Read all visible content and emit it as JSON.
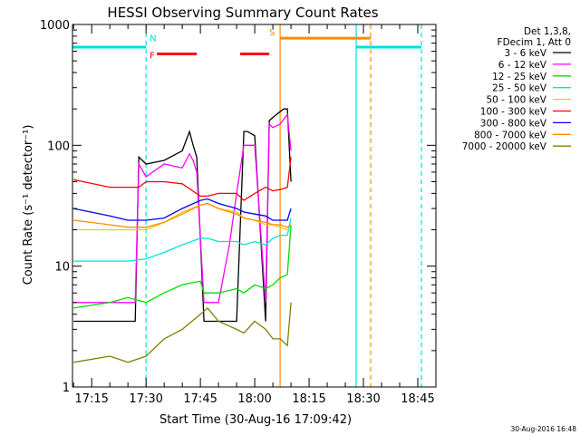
{
  "chart_data": {
    "type": "line",
    "title": "HESSI Observing Summary Count Rates",
    "xlabel": "Start Time (30-Aug-16 17:09:42)",
    "ylabel": "Count Rate (s⁻¹ detector⁻¹)",
    "y_scale": "log",
    "ylim": [
      1,
      1000
    ],
    "xlim": [
      "17:09:42",
      "18:50:00"
    ],
    "grid": false,
    "legend_position": "right",
    "y_ticks": [
      "1",
      "10",
      "100",
      "1000"
    ],
    "x_ticks": [
      "17:15",
      "17:30",
      "17:45",
      "18:00",
      "18:15",
      "18:30",
      "18:45"
    ],
    "legend_header": [
      "Det 1,3,8,",
      "FDecim 1, Att 0"
    ],
    "series": [
      {
        "name": "3 - 6 keV",
        "color": "#000000",
        "x": [
          "17:10",
          "17:20",
          "17:25",
          "17:27",
          "17:28",
          "17:30",
          "17:35",
          "17:40",
          "17:42",
          "17:43",
          "17:44",
          "17:46",
          "17:47",
          "17:50",
          "17:55",
          "17:57",
          "17:58",
          "18:00",
          "18:03",
          "18:04",
          "18:05",
          "18:07",
          "18:08",
          "18:09",
          "18:10"
        ],
        "y": [
          3.5,
          3.5,
          3.5,
          3.5,
          80,
          70,
          75,
          90,
          130,
          100,
          80,
          3.5,
          3.5,
          3.5,
          3.5,
          130,
          130,
          120,
          3.5,
          160,
          170,
          190,
          200,
          200,
          50
        ]
      },
      {
        "name": "6 - 12 keV",
        "color": "#ff00ff",
        "x": [
          "17:10",
          "17:20",
          "17:27",
          "17:28",
          "17:30",
          "17:35",
          "17:40",
          "17:42",
          "17:43",
          "17:44",
          "17:46",
          "17:47",
          "17:50",
          "17:53",
          "17:55",
          "17:57",
          "18:00",
          "18:03",
          "18:04",
          "18:05",
          "18:07",
          "18:09",
          "18:10"
        ],
        "y": [
          5,
          5,
          5,
          70,
          55,
          70,
          65,
          85,
          75,
          60,
          5,
          5,
          5,
          15,
          40,
          100,
          100,
          5,
          150,
          140,
          150,
          180,
          90
        ]
      },
      {
        "name": "12 - 25 keV",
        "color": "#00dd00",
        "x": [
          "17:10",
          "17:20",
          "17:25",
          "17:30",
          "17:35",
          "17:40",
          "17:45",
          "17:46",
          "17:50",
          "17:55",
          "17:57",
          "18:00",
          "18:03",
          "18:05",
          "18:07",
          "18:09",
          "18:10"
        ],
        "y": [
          4.5,
          5,
          5.5,
          5,
          6,
          7,
          7.5,
          6,
          6,
          6.5,
          6,
          7,
          6.5,
          7,
          8,
          8.5,
          22
        ]
      },
      {
        "name": "25 - 50 keV",
        "color": "#00e0e0",
        "x": [
          "17:10",
          "17:20",
          "17:25",
          "17:30",
          "17:35",
          "17:40",
          "17:45",
          "17:47",
          "17:50",
          "17:55",
          "17:57",
          "18:00",
          "18:03",
          "18:05",
          "18:07",
          "18:09",
          "18:10"
        ],
        "y": [
          11,
          11,
          11,
          11.5,
          13,
          15,
          17,
          17,
          16,
          16,
          15,
          16,
          15,
          17,
          18,
          18,
          25
        ]
      },
      {
        "name": "50 - 100 keV",
        "color": "#ffc800",
        "x": [
          "17:10",
          "17:20",
          "17:25",
          "17:30",
          "17:35",
          "17:40",
          "17:45",
          "17:47",
          "17:50",
          "17:55",
          "17:57",
          "18:00",
          "18:03",
          "18:05",
          "18:07",
          "18:09",
          "18:10"
        ],
        "y": [
          20,
          20,
          20,
          20,
          23,
          28,
          32,
          33,
          30,
          28,
          25,
          24,
          22,
          22,
          21,
          20,
          20
        ]
      },
      {
        "name": "100 - 300 keV",
        "color": "#ff0000",
        "x": [
          "17:10",
          "17:20",
          "17:25",
          "17:28",
          "17:30",
          "17:35",
          "17:40",
          "17:45",
          "17:47",
          "17:50",
          "17:55",
          "17:57",
          "18:00",
          "18:03",
          "18:05",
          "18:07",
          "18:09",
          "18:10"
        ],
        "y": [
          52,
          45,
          45,
          45,
          50,
          50,
          48,
          38,
          38,
          40,
          40,
          35,
          40,
          45,
          42,
          43,
          45,
          80
        ]
      },
      {
        "name": "300 - 800 keV",
        "color": "#0000ff",
        "x": [
          "17:10",
          "17:20",
          "17:25",
          "17:30",
          "17:35",
          "17:40",
          "17:45",
          "17:47",
          "17:50",
          "17:55",
          "17:57",
          "18:00",
          "18:03",
          "18:05",
          "18:07",
          "18:09",
          "18:10"
        ],
        "y": [
          30,
          26,
          24,
          24,
          25,
          30,
          35,
          36,
          33,
          30,
          28,
          27,
          26,
          24,
          24,
          24,
          30
        ]
      },
      {
        "name": "800 - 7000 keV",
        "color": "#ff8c00",
        "x": [
          "17:10",
          "17:20",
          "17:25",
          "17:30",
          "17:35",
          "17:40",
          "17:45",
          "17:47",
          "17:50",
          "17:55",
          "17:57",
          "18:00",
          "18:03",
          "18:05",
          "18:07",
          "18:09",
          "18:10"
        ],
        "y": [
          24,
          22,
          21,
          21,
          23,
          27,
          32,
          33,
          30,
          27,
          25,
          24,
          23,
          22,
          22,
          21,
          22
        ]
      },
      {
        "name": "7000 - 20000 keV",
        "color": "#808000",
        "x": [
          "17:10",
          "17:20",
          "17:25",
          "17:30",
          "17:35",
          "17:40",
          "17:45",
          "17:47",
          "17:50",
          "17:55",
          "17:57",
          "18:00",
          "18:03",
          "18:05",
          "18:07",
          "18:09",
          "18:10"
        ],
        "y": [
          1.6,
          1.8,
          1.6,
          1.8,
          2.5,
          3,
          4,
          4.5,
          3.5,
          3,
          2.8,
          3.5,
          3,
          2.5,
          2.5,
          2.2,
          5
        ]
      }
    ],
    "flag_markers": [
      {
        "label": "N",
        "color": "#00e0e0"
      },
      {
        "label": "F",
        "color": "#ff0000"
      },
      {
        "label": "S",
        "color": "#ff8c00"
      }
    ],
    "flag_bars": [
      {
        "flag": "N",
        "color": "#00e0e0",
        "x_start": "17:09:42",
        "x_end": "17:30:00",
        "y": 650
      },
      {
        "flag": "F",
        "color": "#ff0000",
        "x_start": "17:33:00",
        "x_end": "17:44:00",
        "y": 570
      },
      {
        "flag": "F",
        "color": "#ff0000",
        "x_start": "17:56:00",
        "x_end": "18:04:00",
        "y": 570
      },
      {
        "flag": "S",
        "color": "#ff8c00",
        "x_start": "18:07:00",
        "x_end": "18:32:00",
        "y": 770
      },
      {
        "flag": "N",
        "color": "#00e0e0",
        "x_start": "18:28:00",
        "x_end": "18:46:00",
        "y": 650
      }
    ],
    "vertical_lines": [
      {
        "x": "17:30:00",
        "color": "#00e0e0",
        "style": "dashed"
      },
      {
        "x": "18:07:00",
        "color": "#ff8c00",
        "style": "solid"
      },
      {
        "x": "18:28:00",
        "color": "#00e0e0",
        "style": "solid"
      },
      {
        "x": "18:32:00",
        "color": "#ff8c00",
        "style": "dashed"
      },
      {
        "x": "18:46:00",
        "color": "#00e0e0",
        "style": "dashed"
      }
    ]
  },
  "footer_stamp": "30-Aug-2016 16:48"
}
